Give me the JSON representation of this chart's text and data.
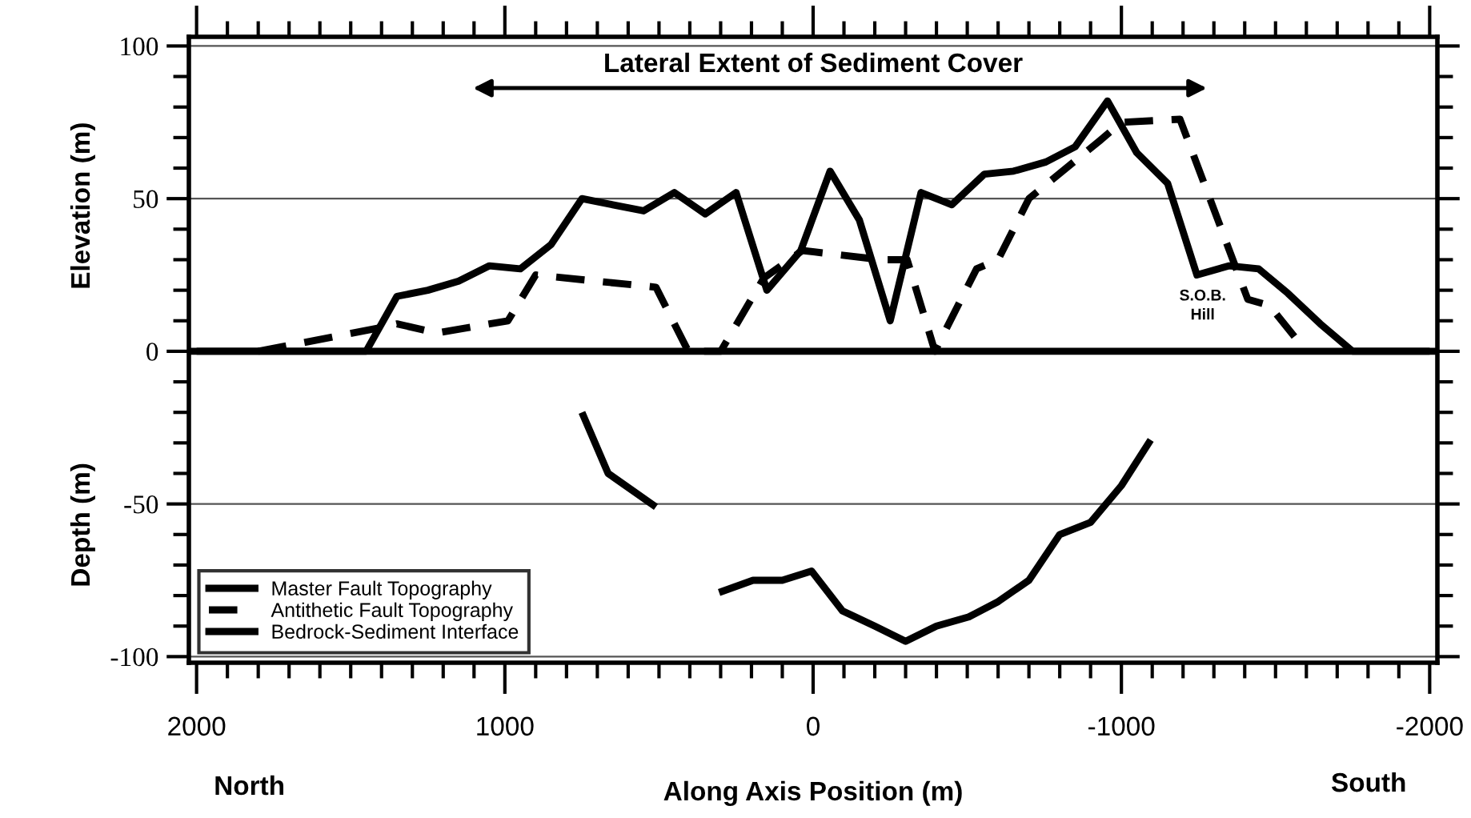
{
  "chart_data": {
    "type": "line",
    "xlabel": "Along Axis Position (m)",
    "ylabel": "Elevation (m)",
    "annotations": [
      "Lateral Extent of Sediment Cover",
      "S.O.B.\nHill",
      "Depth (m)",
      "North",
      "South"
    ],
    "series": [
      {
        "name": "Master Fault Topography",
        "color": "#000000",
        "line_style": "solid",
        "x": [
          2000,
          1450,
          1350,
          1250,
          1150,
          1050,
          950,
          850,
          750,
          650,
          550,
          450,
          350,
          250,
          150,
          40,
          -55,
          -150,
          -250,
          -350,
          -450,
          -555,
          -650,
          -755,
          -850,
          -955,
          -1050,
          -1150,
          -1245,
          -1350,
          -1445,
          -1540,
          -1645,
          -1750,
          -2000
        ],
        "values": [
          0,
          0,
          18,
          20,
          23,
          28,
          27,
          35,
          50,
          48,
          46,
          52,
          45,
          52,
          20,
          33,
          59,
          43,
          10,
          52,
          48,
          58,
          59,
          62,
          67,
          82,
          65,
          55,
          25,
          28,
          27,
          19,
          9,
          0,
          0
        ]
      },
      {
        "name": "Antithetic Fault Topography",
        "color": "#000000",
        "line_style": "dashed",
        "x": [
          1800,
          1390,
          1350,
          1220,
          990,
          900,
          510,
          405,
          300,
          160,
          35,
          -220,
          -305,
          -395,
          -530,
          -600,
          -700,
          -930,
          -1000,
          -1190,
          -1410,
          -1480,
          -1600
        ],
        "values": [
          0,
          8,
          9,
          6,
          10,
          25,
          21,
          0,
          0,
          24,
          33,
          30,
          30,
          0,
          27,
          30,
          50,
          69,
          75,
          76,
          17,
          15,
          0
        ]
      },
      {
        "name": "Bedrock-Sediment Interface",
        "color": "#000000",
        "line_style": "solid",
        "x": [
          750,
          665,
          510,
          400,
          305,
          195,
          100,
          5,
          -95,
          -200,
          -300,
          -400,
          -505,
          -600,
          -700,
          -800,
          -900,
          -1000,
          -1095
        ],
        "values": [
          -20,
          -40,
          -51,
          null,
          -79,
          -75,
          -75,
          -72,
          -85,
          -90,
          -95,
          -90,
          -87,
          -82,
          -75,
          -60,
          -56,
          -44,
          -29
        ]
      }
    ],
    "ref_lines": [
      {
        "axis": "y",
        "value": 0,
        "color": "#000000"
      }
    ],
    "xlim": [
      2025,
      -2025
    ],
    "xticks": [
      2000,
      {
        "value": 1900,
        "label": null
      },
      {
        "value": 1800,
        "label": null
      },
      {
        "value": 1700,
        "label": null
      },
      {
        "value": 1600,
        "label": null
      },
      {
        "value": 1500,
        "label": null
      },
      {
        "value": 1400,
        "label": null
      },
      {
        "value": 1300,
        "label": null
      },
      {
        "value": 1200,
        "label": null
      },
      {
        "value": 1100,
        "label": null
      },
      1000,
      {
        "value": 900,
        "label": null
      },
      {
        "value": 800,
        "label": null
      },
      {
        "value": 700,
        "label": null
      },
      {
        "value": 600,
        "label": null
      },
      {
        "value": 500,
        "label": null
      },
      {
        "value": 400,
        "label": null
      },
      {
        "value": 300,
        "label": null
      },
      {
        "value": 200,
        "label": null
      },
      {
        "value": 100,
        "label": null
      },
      0,
      {
        "value": -100,
        "label": null
      },
      {
        "value": -200,
        "label": null
      },
      {
        "value": -300,
        "label": null
      },
      {
        "value": -400,
        "label": null
      },
      {
        "value": -500,
        "label": null
      },
      {
        "value": -600,
        "label": null
      },
      {
        "value": -700,
        "label": null
      },
      {
        "value": -800,
        "label": null
      },
      {
        "value": -900,
        "label": null
      },
      -1000,
      {
        "value": -1100,
        "label": null
      },
      {
        "value": -1200,
        "label": null
      },
      {
        "value": -1300,
        "label": null
      },
      {
        "value": -1400,
        "label": null
      },
      {
        "value": -1500,
        "label": null
      },
      {
        "value": -1600,
        "label": null
      },
      {
        "value": -1700,
        "label": null
      },
      {
        "value": -1800,
        "label": null
      },
      {
        "value": -1900,
        "label": null
      },
      -2000
    ],
    "ylim": [
      -102,
      103
    ],
    "yticks": [
      -100,
      {
        "value": -90,
        "label": null
      },
      {
        "value": -80,
        "label": null
      },
      {
        "value": -70,
        "label": null
      },
      {
        "value": -60,
        "label": null
      },
      -50,
      {
        "value": -40,
        "label": null
      },
      {
        "value": -30,
        "label": null
      },
      {
        "value": -20,
        "label": null
      },
      {
        "value": -10,
        "label": null
      },
      0,
      {
        "value": 10,
        "label": null
      },
      {
        "value": 20,
        "label": null
      },
      {
        "value": 30,
        "label": null
      },
      {
        "value": 40,
        "label": null
      },
      50,
      {
        "value": 60,
        "label": null
      },
      {
        "value": 70,
        "label": null
      },
      {
        "value": 80,
        "label": null
      },
      {
        "value": 90,
        "label": null
      },
      100
    ],
    "grid": "y",
    "legend": "bottom left",
    "marker": "none"
  }
}
